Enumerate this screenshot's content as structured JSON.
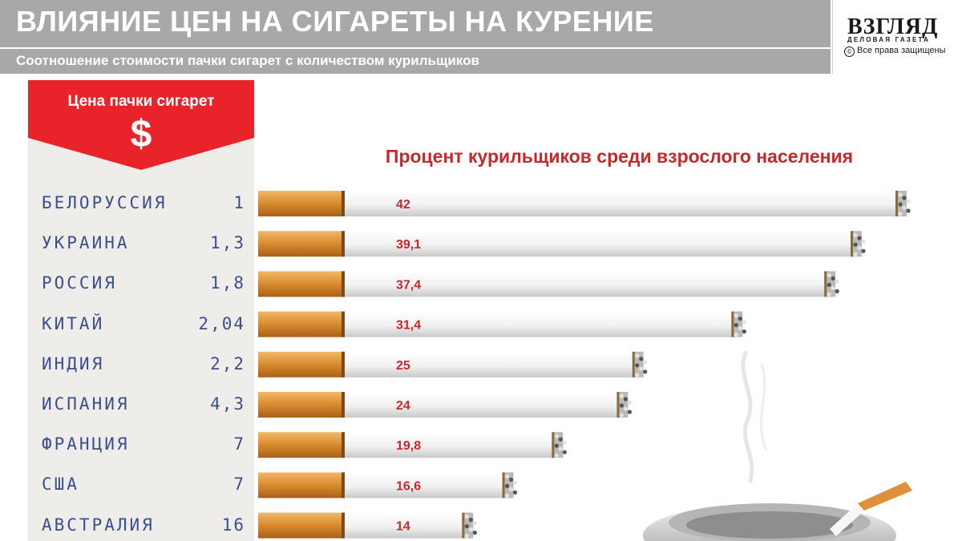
{
  "header": {
    "title": "ВЛИЯНИЕ ЦЕН НА СИГАРЕТЫ НА КУРЕНИЕ",
    "subtitle": "Соотношение стоимости пачки сигарет с количеством курильщиков"
  },
  "logo": {
    "name": "ВЗГЛЯД",
    "tagline": "ДЕЛОВАЯ ГАЗЕТА",
    "copyright_symbol": "©",
    "copyright": "Все права защищены"
  },
  "price_panel": {
    "label": "Цена пачки сигарет",
    "symbol": "$"
  },
  "colors": {
    "header_bg": "#a8a8a8",
    "accent_red": "#c8282a",
    "label_blue": "#3c4e8c",
    "filter_orange": "#d98a2e",
    "paper_white": "#f4f4f4"
  },
  "chart_data": {
    "type": "bar",
    "title": "Процент курильщиков среди взрослого населения",
    "categories": [
      "БЕЛОРУССИЯ",
      "УКРАИНА",
      "РОССИЯ",
      "КИТАЙ",
      "ИНДИЯ",
      "ИСПАНИЯ",
      "ФРАНЦИЯ",
      "США",
      "АВСТРАЛИЯ"
    ],
    "price_labels": [
      "1",
      "1,3",
      "1,8",
      "2,04",
      "2,2",
      "4,3",
      "7",
      "7",
      "16"
    ],
    "value_labels": [
      "42",
      "39,1",
      "37,4",
      "31,4",
      "25",
      "24",
      "19,8",
      "16,6",
      "14"
    ],
    "series": [
      {
        "values": [
          42,
          39.1,
          37.4,
          31.4,
          25,
          24,
          19.8,
          16.6,
          14
        ]
      }
    ],
    "orientation": "horizontal",
    "grid": false,
    "legend": "none"
  }
}
